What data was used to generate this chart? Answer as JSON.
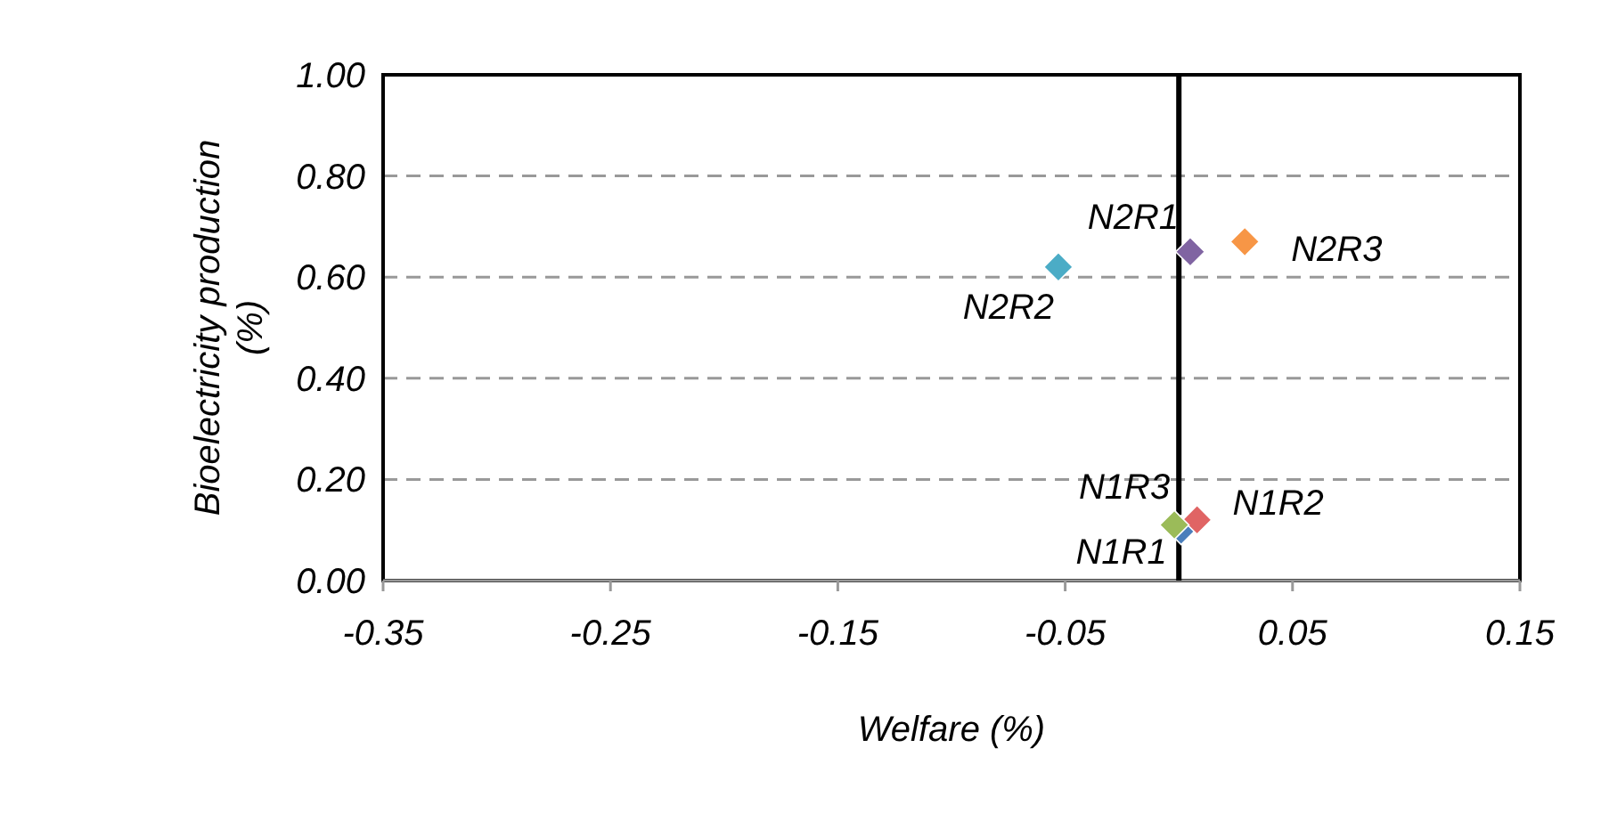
{
  "chart_data": {
    "type": "scatter",
    "xlabel": "Welfare (%)",
    "ylabel": "Bioelectricity production (%)",
    "xlim": [
      -0.35,
      0.15
    ],
    "xticks": [
      {
        "value": -0.35,
        "label": "-0.35"
      },
      {
        "value": -0.25,
        "label": "-0.25"
      },
      {
        "value": -0.15,
        "label": "-0.15"
      },
      {
        "value": -0.05,
        "label": "-0.05"
      },
      {
        "value": 0.05,
        "label": "0.05"
      },
      {
        "value": 0.15,
        "label": "0.15"
      }
    ],
    "ylim": [
      0,
      1
    ],
    "yticks": [
      {
        "value": 0,
        "label": "0.00"
      },
      {
        "value": 0.2,
        "label": "0.20"
      },
      {
        "value": 0.4,
        "label": "0.40"
      },
      {
        "value": 0.6,
        "label": "0.60"
      },
      {
        "value": 0.8,
        "label": "0.80"
      },
      {
        "value": 1,
        "label": "1.00"
      }
    ],
    "grid": "y",
    "legend": false,
    "marker": "diamond",
    "ref_lines": [
      {
        "axis": "x",
        "value": 0,
        "color": "#000000"
      }
    ],
    "series": [
      {
        "name": "N1R1",
        "color": "#4a7ebb",
        "x": [
          0.001
        ],
        "values": [
          0.1
        ]
      },
      {
        "name": "N1R2",
        "color": "#e06464",
        "x": [
          0.008
        ],
        "values": [
          0.12
        ]
      },
      {
        "name": "N1R3",
        "color": "#9bbb59",
        "x": [
          -0.002
        ],
        "values": [
          0.11
        ]
      },
      {
        "name": "N2R1",
        "color": "#8064a2",
        "x": [
          0.005
        ],
        "values": [
          0.65
        ]
      },
      {
        "name": "N2R2",
        "color": "#4bacc6",
        "x": [
          -0.053
        ],
        "values": [
          0.62
        ]
      },
      {
        "name": "N2R3",
        "color": "#f79646",
        "x": [
          0.029
        ],
        "values": [
          0.67
        ]
      }
    ]
  }
}
